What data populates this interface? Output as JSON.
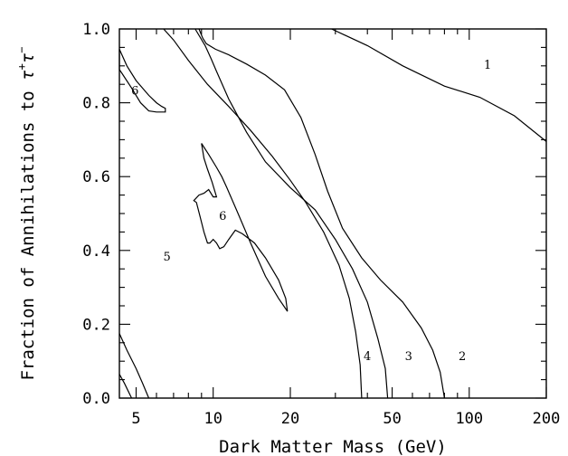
{
  "chart_data": {
    "type": "line",
    "title": "",
    "xlabel": "Dark Matter Mass (GeV)",
    "ylabel_prefix": "Fraction of Annihilations to ",
    "ylabel_symbol": "τ",
    "ylabel_sup1": "+",
    "ylabel_sup2": "−",
    "xscale": "log",
    "xlim": [
      4.3,
      200
    ],
    "ylim": [
      0,
      1.0
    ],
    "grid": false,
    "x_major_ticks": [
      {
        "value": 5,
        "label": "5"
      },
      {
        "value": 10,
        "label": "10"
      },
      {
        "value": 20,
        "label": "20"
      },
      {
        "value": 50,
        "label": "50"
      },
      {
        "value": 100,
        "label": "100"
      },
      {
        "value": 200,
        "label": "200"
      }
    ],
    "x_minor_ticks": [
      6,
      7,
      8,
      9,
      30,
      40,
      60,
      70,
      80,
      90
    ],
    "y_major_ticks": [
      {
        "value": 0.0,
        "label": "0.0"
      },
      {
        "value": 0.2,
        "label": "0.2"
      },
      {
        "value": 0.4,
        "label": "0.4"
      },
      {
        "value": 0.6,
        "label": "0.6"
      },
      {
        "value": 0.8,
        "label": "0.8"
      },
      {
        "value": 1.0,
        "label": "1.0"
      }
    ],
    "y_minor_ticks": [
      0.05,
      0.1,
      0.15,
      0.25,
      0.3,
      0.35,
      0.45,
      0.5,
      0.55,
      0.65,
      0.7,
      0.75,
      0.85,
      0.9,
      0.95
    ],
    "curves": [
      {
        "id": "boundary-1-2",
        "points": [
          [
            29,
            1.0
          ],
          [
            40,
            0.955
          ],
          [
            55,
            0.9
          ],
          [
            80,
            0.845
          ],
          [
            110,
            0.815
          ],
          [
            150,
            0.765
          ],
          [
            200,
            0.695
          ]
        ]
      },
      {
        "id": "boundary-2-3",
        "points": [
          [
            8.8,
            1.0
          ],
          [
            9.1,
            0.975
          ],
          [
            9.4,
            0.96
          ],
          [
            10.2,
            0.945
          ],
          [
            11.5,
            0.93
          ],
          [
            13.5,
            0.905
          ],
          [
            16,
            0.875
          ],
          [
            19,
            0.835
          ],
          [
            22,
            0.76
          ],
          [
            25,
            0.66
          ],
          [
            28,
            0.56
          ],
          [
            32,
            0.46
          ],
          [
            38,
            0.38
          ],
          [
            45,
            0.32
          ],
          [
            55,
            0.26
          ],
          [
            65,
            0.19
          ],
          [
            72,
            0.13
          ],
          [
            77,
            0.07
          ],
          [
            80,
            0.0
          ]
        ]
      },
      {
        "id": "boundary-3-4",
        "points": [
          [
            8.5,
            1.0
          ],
          [
            9.3,
            0.955
          ],
          [
            9.8,
            0.92
          ],
          [
            10.3,
            0.885
          ],
          [
            11.5,
            0.81
          ],
          [
            13.5,
            0.72
          ],
          [
            16,
            0.64
          ],
          [
            20,
            0.57
          ],
          [
            25,
            0.51
          ],
          [
            30,
            0.43
          ],
          [
            35,
            0.35
          ],
          [
            40,
            0.26
          ],
          [
            44,
            0.16
          ],
          [
            47,
            0.08
          ],
          [
            48,
            0.0
          ]
        ]
      },
      {
        "id": "boundary-4-5",
        "points": [
          [
            6.4,
            1.0
          ],
          [
            7,
            0.97
          ],
          [
            8,
            0.915
          ],
          [
            9.5,
            0.85
          ],
          [
            11.5,
            0.79
          ],
          [
            14,
            0.725
          ],
          [
            17,
            0.655
          ],
          [
            20,
            0.59
          ],
          [
            23,
            0.53
          ],
          [
            27,
            0.45
          ],
          [
            31,
            0.36
          ],
          [
            34,
            0.27
          ],
          [
            36,
            0.18
          ],
          [
            37.5,
            0.09
          ],
          [
            38,
            0.0
          ]
        ]
      },
      {
        "id": "island-6-upper",
        "closed": true,
        "points": [
          [
            4.3,
            0.945
          ],
          [
            4.6,
            0.9
          ],
          [
            5.0,
            0.86
          ],
          [
            5.6,
            0.82
          ],
          [
            6.0,
            0.8
          ],
          [
            6.3,
            0.79
          ],
          [
            6.5,
            0.785
          ],
          [
            6.5,
            0.775
          ],
          [
            6.0,
            0.775
          ],
          [
            5.6,
            0.778
          ],
          [
            5.2,
            0.8
          ],
          [
            4.8,
            0.84
          ],
          [
            4.4,
            0.88
          ],
          [
            4.3,
            0.89
          ]
        ]
      },
      {
        "id": "island-6-middle",
        "closed": true,
        "points": [
          [
            9.0,
            0.69
          ],
          [
            9.6,
            0.66
          ],
          [
            10.3,
            0.625
          ],
          [
            10.8,
            0.6
          ],
          [
            11.3,
            0.57
          ],
          [
            12.5,
            0.5
          ],
          [
            14,
            0.42
          ],
          [
            16,
            0.33
          ],
          [
            18,
            0.27
          ],
          [
            19.5,
            0.235
          ],
          [
            19.2,
            0.27
          ],
          [
            18,
            0.32
          ],
          [
            16,
            0.38
          ],
          [
            14.5,
            0.42
          ],
          [
            13,
            0.445
          ],
          [
            12.2,
            0.455
          ],
          [
            11.5,
            0.43
          ],
          [
            11,
            0.41
          ],
          [
            10.6,
            0.405
          ],
          [
            10.3,
            0.42
          ],
          [
            10.0,
            0.43
          ],
          [
            9.7,
            0.42
          ],
          [
            9.5,
            0.42
          ],
          [
            9.2,
            0.45
          ],
          [
            8.9,
            0.49
          ],
          [
            8.6,
            0.53
          ],
          [
            8.4,
            0.535
          ],
          [
            8.8,
            0.55
          ],
          [
            9.2,
            0.555
          ],
          [
            9.6,
            0.565
          ],
          [
            10.0,
            0.545
          ],
          [
            10.3,
            0.545
          ],
          [
            9.9,
            0.585
          ],
          [
            9.5,
            0.62
          ],
          [
            9.2,
            0.65
          ],
          [
            9.0,
            0.69
          ]
        ]
      },
      {
        "id": "corner-lower-left-a",
        "points": [
          [
            4.3,
            0.175
          ],
          [
            4.6,
            0.13
          ],
          [
            5.0,
            0.08
          ],
          [
            5.3,
            0.04
          ],
          [
            5.6,
            0.0
          ]
        ]
      },
      {
        "id": "corner-lower-left-b",
        "points": [
          [
            4.3,
            0.065
          ],
          [
            4.5,
            0.04
          ],
          [
            4.8,
            0.0
          ]
        ]
      }
    ],
    "region_labels": [
      {
        "text": "1",
        "x": 118,
        "y": 0.905
      },
      {
        "text": "2",
        "x": 94,
        "y": 0.115
      },
      {
        "text": "3",
        "x": 58,
        "y": 0.115
      },
      {
        "text": "4",
        "x": 40,
        "y": 0.115
      },
      {
        "text": "5",
        "x": 6.6,
        "y": 0.385
      },
      {
        "text": "6",
        "x": 4.95,
        "y": 0.835
      },
      {
        "text": "6",
        "x": 10.9,
        "y": 0.495
      }
    ]
  }
}
